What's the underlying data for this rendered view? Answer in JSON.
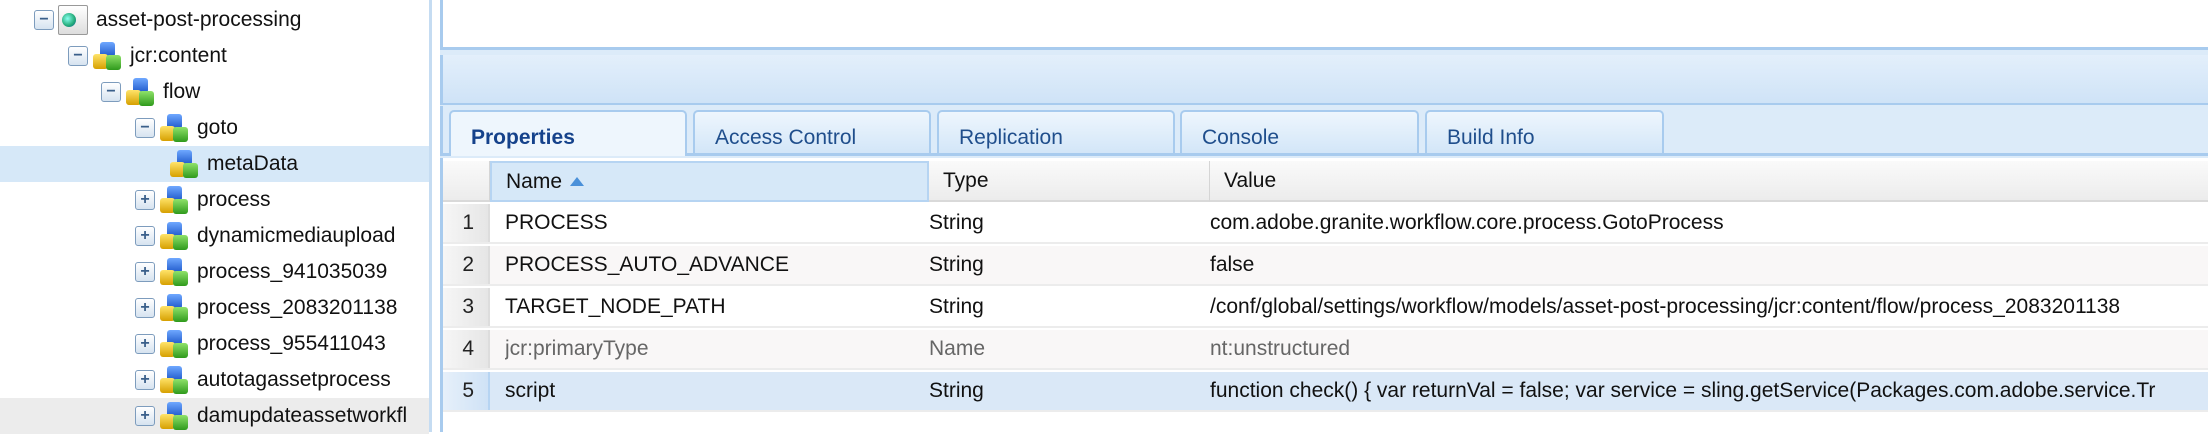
{
  "tree": {
    "nodes": [
      {
        "label": "asset-post-processing",
        "expander": "collapse",
        "icon": "page-globe-icon"
      },
      {
        "label": "jcr:content",
        "expander": "collapse",
        "icon": "node-icon"
      },
      {
        "label": "flow",
        "expander": "collapse",
        "icon": "node-icon"
      },
      {
        "label": "goto",
        "expander": "collapse",
        "icon": "node-icon"
      },
      {
        "label": "metaData",
        "expander": "none",
        "icon": "node-icon",
        "selected": true
      },
      {
        "label": "process",
        "expander": "expand",
        "icon": "node-icon"
      },
      {
        "label": "dynamicmediaupload",
        "expander": "expand",
        "icon": "node-icon"
      },
      {
        "label": "process_941035039",
        "expander": "expand",
        "icon": "node-icon"
      },
      {
        "label": "process_2083201138",
        "expander": "expand",
        "icon": "node-icon"
      },
      {
        "label": "process_955411043",
        "expander": "expand",
        "icon": "node-icon"
      },
      {
        "label": "autotagassetprocess",
        "expander": "expand",
        "icon": "node-icon"
      },
      {
        "label": "damupdateassetworkfl",
        "expander": "expand",
        "icon": "node-icon"
      }
    ]
  },
  "tabs": [
    "Properties",
    "Access Control",
    "Replication",
    "Console",
    "Build Info"
  ],
  "active_tab": "Properties",
  "grid": {
    "columns": {
      "name": "Name",
      "type": "Type",
      "value": "Value"
    },
    "sorted_by": "Name",
    "rows": [
      {
        "n": "1",
        "name": "PROCESS",
        "type": "String",
        "value": "com.adobe.granite.workflow.core.process.GotoProcess"
      },
      {
        "n": "2",
        "name": "PROCESS_AUTO_ADVANCE",
        "type": "String",
        "value": "false"
      },
      {
        "n": "3",
        "name": "TARGET_NODE_PATH",
        "type": "String",
        "value": "/conf/global/settings/workflow/models/asset-post-processing/jcr:content/flow/process_2083201138"
      },
      {
        "n": "4",
        "name": "jcr:primaryType",
        "type": "Name",
        "value": "nt:unstructured"
      },
      {
        "n": "5",
        "name": "script",
        "type": "String",
        "value": "function check() { var returnVal = false; var service = sling.getService(Packages.com.adobe.service.Tr"
      }
    ]
  }
}
